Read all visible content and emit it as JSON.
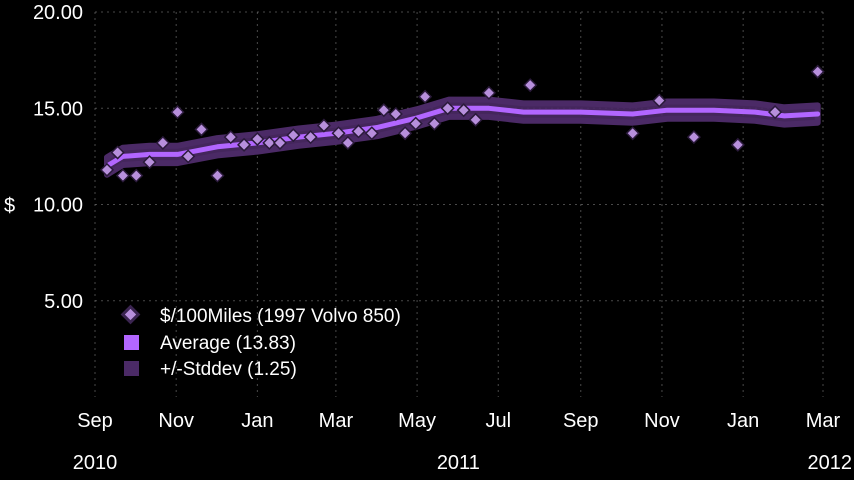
{
  "chart_data": {
    "type": "line",
    "title": "",
    "xlabel": "",
    "ylabel": "$",
    "ylim": [
      0,
      20
    ],
    "xlim": [
      "2010-09-01",
      "2012-03-01"
    ],
    "grid": true,
    "legend_position": "bottom-left",
    "y_ticks": [
      {
        "value": 5,
        "label": "5.00"
      },
      {
        "value": 10,
        "label": "10.00"
      },
      {
        "value": 15,
        "label": "15.00"
      },
      {
        "value": 20,
        "label": "20.00"
      }
    ],
    "x_ticks": [
      {
        "date": "2010-09-01",
        "label": "Sep"
      },
      {
        "date": "2010-11-01",
        "label": "Nov"
      },
      {
        "date": "2011-01-01",
        "label": "Jan"
      },
      {
        "date": "2011-03-01",
        "label": "Mar"
      },
      {
        "date": "2011-05-01",
        "label": "May"
      },
      {
        "date": "2011-07-01",
        "label": "Jul"
      },
      {
        "date": "2011-09-01",
        "label": "Sep"
      },
      {
        "date": "2011-11-01",
        "label": "Nov"
      },
      {
        "date": "2012-01-01",
        "label": "Jan"
      },
      {
        "date": "2012-03-01",
        "label": "Mar"
      }
    ],
    "year_labels": [
      {
        "date": "2010-09-01",
        "label": "2010"
      },
      {
        "date": "2011-06-01",
        "label": "2011"
      },
      {
        "date": "2012-03-01",
        "label": "2012"
      }
    ],
    "colors": {
      "points": "#b78fdc",
      "average": "#b266ff",
      "stddev_band": "#4b2a66"
    },
    "series": [
      {
        "name": "$/100Miles  (1997 Volvo 850)",
        "kind": "scatter",
        "points": [
          {
            "x": "2010-09-10",
            "y": 11.8
          },
          {
            "x": "2010-09-18",
            "y": 12.7
          },
          {
            "x": "2010-09-22",
            "y": 11.5
          },
          {
            "x": "2010-10-02",
            "y": 11.5
          },
          {
            "x": "2010-10-12",
            "y": 12.2
          },
          {
            "x": "2010-10-22",
            "y": 13.2
          },
          {
            "x": "2010-11-02",
            "y": 14.8
          },
          {
            "x": "2010-11-10",
            "y": 12.5
          },
          {
            "x": "2010-11-20",
            "y": 13.9
          },
          {
            "x": "2010-12-02",
            "y": 11.5
          },
          {
            "x": "2010-12-12",
            "y": 13.5
          },
          {
            "x": "2010-12-22",
            "y": 13.1
          },
          {
            "x": "2011-01-01",
            "y": 13.4
          },
          {
            "x": "2011-01-10",
            "y": 13.2
          },
          {
            "x": "2011-01-18",
            "y": 13.2
          },
          {
            "x": "2011-01-28",
            "y": 13.6
          },
          {
            "x": "2011-02-10",
            "y": 13.5
          },
          {
            "x": "2011-02-20",
            "y": 14.1
          },
          {
            "x": "2011-03-03",
            "y": 13.7
          },
          {
            "x": "2011-03-10",
            "y": 13.2
          },
          {
            "x": "2011-03-18",
            "y": 13.8
          },
          {
            "x": "2011-03-28",
            "y": 13.7
          },
          {
            "x": "2011-04-06",
            "y": 14.9
          },
          {
            "x": "2011-04-15",
            "y": 14.7
          },
          {
            "x": "2011-04-22",
            "y": 13.7
          },
          {
            "x": "2011-04-30",
            "y": 14.2
          },
          {
            "x": "2011-05-07",
            "y": 15.6
          },
          {
            "x": "2011-05-14",
            "y": 14.2
          },
          {
            "x": "2011-05-24",
            "y": 15.0
          },
          {
            "x": "2011-06-05",
            "y": 14.9
          },
          {
            "x": "2011-06-14",
            "y": 14.4
          },
          {
            "x": "2011-06-24",
            "y": 15.8
          },
          {
            "x": "2011-07-25",
            "y": 16.2
          },
          {
            "x": "2011-10-10",
            "y": 13.7
          },
          {
            "x": "2011-10-30",
            "y": 15.4
          },
          {
            "x": "2011-11-25",
            "y": 13.5
          },
          {
            "x": "2011-12-28",
            "y": 13.1
          },
          {
            "x": "2012-01-25",
            "y": 14.8
          },
          {
            "x": "2012-02-26",
            "y": 16.9
          }
        ]
      },
      {
        "name": "Average  (13.83)",
        "kind": "line",
        "points": [
          {
            "x": "2010-09-10",
            "y": 12.0
          },
          {
            "x": "2010-09-22",
            "y": 12.5
          },
          {
            "x": "2010-10-12",
            "y": 12.6
          },
          {
            "x": "2010-11-02",
            "y": 12.6
          },
          {
            "x": "2010-12-02",
            "y": 13.0
          },
          {
            "x": "2011-01-01",
            "y": 13.2
          },
          {
            "x": "2011-02-01",
            "y": 13.5
          },
          {
            "x": "2011-03-01",
            "y": 13.7
          },
          {
            "x": "2011-04-01",
            "y": 14.0
          },
          {
            "x": "2011-05-01",
            "y": 14.5
          },
          {
            "x": "2011-05-25",
            "y": 15.0
          },
          {
            "x": "2011-06-24",
            "y": 15.0
          },
          {
            "x": "2011-07-20",
            "y": 14.8
          },
          {
            "x": "2011-09-01",
            "y": 14.8
          },
          {
            "x": "2011-10-10",
            "y": 14.7
          },
          {
            "x": "2011-11-05",
            "y": 14.9
          },
          {
            "x": "2011-12-10",
            "y": 14.9
          },
          {
            "x": "2012-01-10",
            "y": 14.8
          },
          {
            "x": "2012-02-01",
            "y": 14.6
          },
          {
            "x": "2012-02-26",
            "y": 14.7
          }
        ]
      },
      {
        "name": "+/-Stddev  (1.25)",
        "kind": "band",
        "half_width": 0.45
      }
    ]
  }
}
